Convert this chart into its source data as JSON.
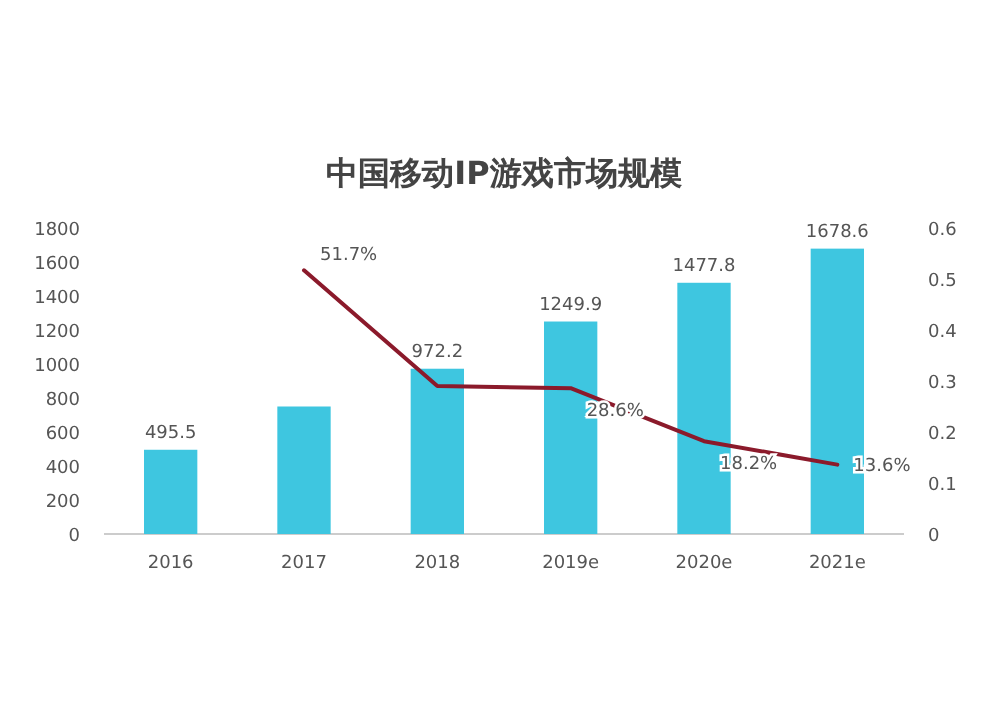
{
  "chart_data": {
    "type": "bar",
    "title": "中国移动IP游戏市场规模",
    "categories": [
      "2016",
      "2017",
      "2018",
      "2019e",
      "2020e",
      "2021e"
    ],
    "ylim": [
      0,
      1800
    ],
    "yticks": [
      0,
      200,
      400,
      600,
      800,
      1000,
      1200,
      1400,
      1600,
      1800
    ],
    "y2lim": [
      0,
      0.6
    ],
    "y2ticks": [
      0,
      0.1,
      0.2,
      0.3,
      0.4,
      0.5,
      0.6
    ],
    "series": [
      {
        "color": "#3ec6e0",
        "values": [
          495.5,
          750,
          972.2,
          1249.9,
          1477.8,
          1678.6
        ],
        "value_labels": [
          "495.5",
          null,
          "972.2",
          "1249.9",
          "1477.8",
          "1678.6"
        ]
      },
      {
        "type": "line",
        "axis": "y2",
        "color": "#8b1a2b",
        "values": [
          null,
          0.517,
          0.29,
          0.286,
          0.182,
          0.136
        ],
        "value_labels": [
          null,
          "51.7%",
          null,
          "28.6%",
          "18.2%",
          "13.6%"
        ]
      }
    ]
  }
}
